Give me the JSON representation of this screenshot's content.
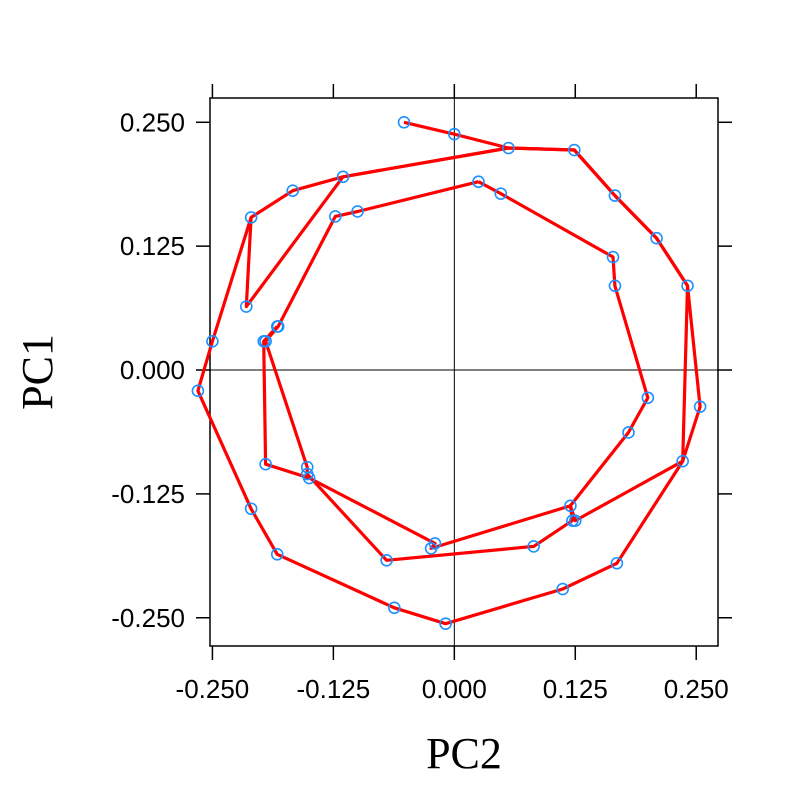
{
  "chart_data": {
    "type": "line",
    "xlabel": "PC2",
    "ylabel": "PC1",
    "xlim": [
      -0.2525,
      0.2725
    ],
    "ylim": [
      -0.2785,
      0.2745
    ],
    "xticks": [
      -0.25,
      -0.125,
      0.0,
      0.125,
      0.25
    ],
    "yticks": [
      -0.25,
      -0.125,
      0.0,
      0.125,
      0.25
    ],
    "xtick_labels": [
      "-0.250",
      "-0.125",
      "0.000",
      "0.125",
      "0.250"
    ],
    "ytick_labels": [
      "-0.250",
      "-0.125",
      "0.000",
      "0.125",
      "0.250"
    ],
    "reference_lines": {
      "x": 0,
      "y": 0
    },
    "colors": {
      "line": "#ff0000",
      "point": "#1e90ff",
      "ref": "#000000"
    },
    "series": [
      {
        "points": [
          [
            -0.052,
            0.25
          ],
          [
            0.0,
            0.238
          ],
          [
            0.056,
            0.224
          ],
          [
            -0.115,
            0.195
          ],
          [
            -0.167,
            0.181
          ],
          [
            -0.21,
            0.154
          ],
          [
            -0.25,
            0.029
          ],
          [
            -0.265,
            -0.021
          ],
          [
            -0.21,
            -0.14
          ],
          [
            -0.183,
            -0.186
          ],
          [
            -0.062,
            -0.24
          ],
          [
            -0.009,
            -0.256
          ],
          [
            0.112,
            -0.221
          ],
          [
            0.168,
            -0.195
          ],
          [
            0.236,
            -0.092
          ],
          [
            0.254,
            -0.037
          ],
          [
            0.241,
            0.085
          ],
          [
            0.209,
            0.133
          ],
          [
            0.166,
            0.176
          ],
          [
            0.124,
            0.222
          ],
          [
            0.056,
            0.224
          ]
        ]
      },
      {
        "points": [
          [
            0.025,
            0.19
          ],
          [
            0.048,
            0.178
          ],
          [
            0.164,
            0.114
          ],
          [
            0.166,
            0.085
          ],
          [
            0.2,
            -0.028
          ],
          [
            0.18,
            -0.063
          ],
          [
            0.12,
            -0.137
          ],
          [
            0.122,
            -0.152
          ],
          [
            0.082,
            -0.178
          ],
          [
            -0.07,
            -0.192
          ],
          [
            -0.152,
            -0.105
          ],
          [
            -0.152,
            -0.098
          ],
          [
            -0.195,
            0.029
          ],
          [
            -0.182,
            0.044
          ],
          [
            -0.123,
            0.155
          ],
          [
            -0.1,
            0.16
          ],
          [
            0.025,
            0.19
          ]
        ]
      },
      {
        "points": [
          [
            -0.183,
            0.044
          ],
          [
            -0.197,
            0.029
          ],
          [
            -0.195,
            -0.095
          ],
          [
            -0.15,
            -0.109
          ],
          [
            -0.02,
            -0.175
          ],
          [
            -0.024,
            -0.18
          ],
          [
            0.12,
            -0.137
          ],
          [
            0.125,
            -0.152
          ],
          [
            0.236,
            -0.092
          ],
          [
            0.241,
            0.085
          ],
          [
            0.209,
            0.133
          ],
          [
            0.166,
            0.176
          ],
          [
            0.124,
            0.222
          ],
          [
            0.056,
            0.224
          ],
          [
            -0.115,
            0.195
          ],
          [
            -0.215,
            0.064
          ],
          [
            -0.21,
            0.154
          ]
        ]
      }
    ]
  }
}
